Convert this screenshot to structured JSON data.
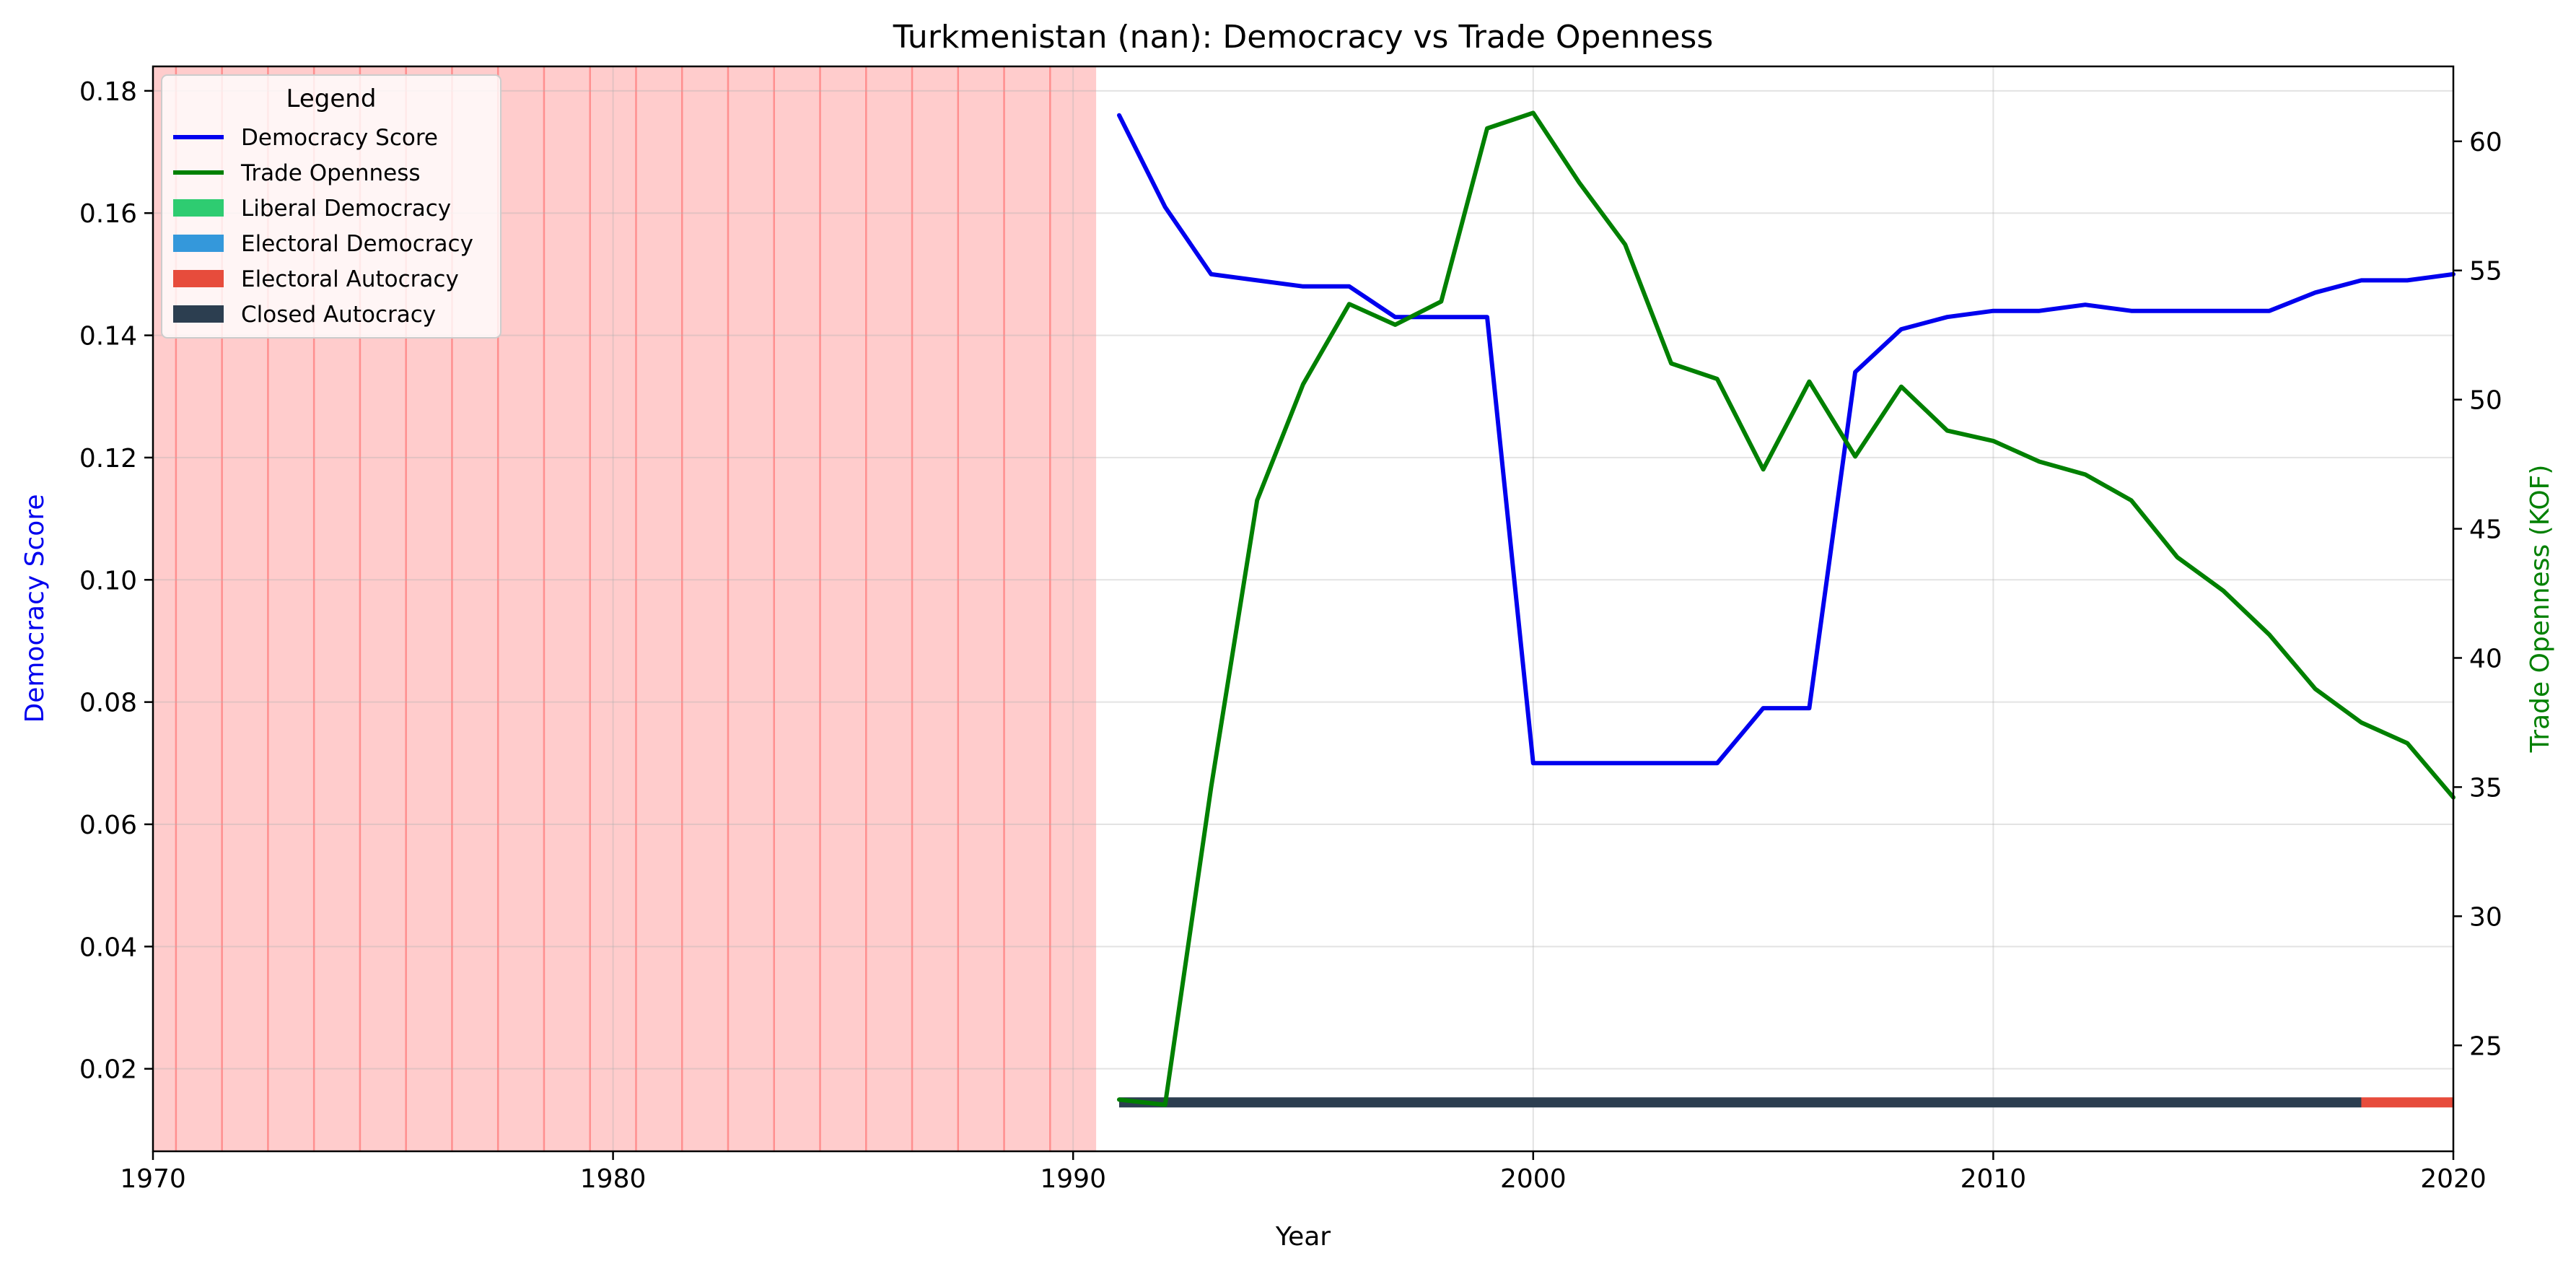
{
  "chart_data": {
    "type": "line",
    "title": "Turkmenistan (nan): Democracy vs Trade Openness",
    "xlabel": "Year",
    "ylabel_left": "Democracy Score",
    "ylabel_right": "Trade Openness (KOF)",
    "xlim": [
      1970,
      2020
    ],
    "ylim_left": [
      0.0065,
      0.184
    ],
    "ylim_right": [
      20.9,
      62.9
    ],
    "x_ticks": [
      1970,
      1980,
      1990,
      2000,
      2010,
      2020
    ],
    "y_left_ticks": [
      0.02,
      0.04,
      0.06,
      0.08,
      0.1,
      0.12,
      0.14,
      0.16,
      0.18
    ],
    "y_left_tick_labels": [
      "0.02",
      "0.04",
      "0.06",
      "0.08",
      "0.10",
      "0.12",
      "0.14",
      "0.16",
      "0.18"
    ],
    "y_right_ticks": [
      25,
      30,
      35,
      40,
      45,
      50,
      55,
      60
    ],
    "grid": true,
    "legend": {
      "title": "Legend",
      "placement": "top-left",
      "entries": [
        {
          "label": "Democracy Score",
          "kind": "line",
          "color": "#0000ee"
        },
        {
          "label": "Trade Openness",
          "kind": "line",
          "color": "#008000"
        },
        {
          "label": "Liberal Democracy",
          "kind": "patch",
          "color": "#2ecc71"
        },
        {
          "label": "Electoral Democracy",
          "kind": "patch",
          "color": "#3498db"
        },
        {
          "label": "Electoral Autocracy",
          "kind": "patch",
          "color": "#e74c3c"
        },
        {
          "label": "Closed Autocracy",
          "kind": "patch",
          "color": "#2c3e50"
        }
      ]
    },
    "missing_data_shading": {
      "range": [
        1970,
        1990.5
      ],
      "color": "#ff9999",
      "year_lines": [
        1970.5,
        1971.5,
        1972.5,
        1973.5,
        1974.5,
        1975.5,
        1976.5,
        1977.5,
        1978.5,
        1979.5,
        1980.5,
        1981.5,
        1982.5,
        1983.5,
        1984.5,
        1985.5,
        1986.5,
        1987.5,
        1988.5,
        1989.5
      ]
    },
    "series": [
      {
        "name": "Democracy Score",
        "axis": "left",
        "color": "#0000ee",
        "x": [
          1991,
          1992,
          1993,
          1994,
          1995,
          1996,
          1997,
          1998,
          1999,
          2000,
          2001,
          2002,
          2003,
          2004,
          2005,
          2006,
          2007,
          2008,
          2009,
          2010,
          2011,
          2012,
          2013,
          2014,
          2015,
          2016,
          2017,
          2018,
          2019,
          2020
        ],
        "values": [
          0.176,
          0.161,
          0.15,
          0.149,
          0.148,
          0.148,
          0.143,
          0.143,
          0.143,
          0.07,
          0.07,
          0.07,
          0.07,
          0.07,
          0.079,
          0.079,
          0.134,
          0.141,
          0.143,
          0.144,
          0.144,
          0.145,
          0.144,
          0.144,
          0.144,
          0.144,
          0.147,
          0.149,
          0.149,
          0.15
        ]
      },
      {
        "name": "Trade Openness",
        "axis": "right",
        "color": "#008000",
        "x": [
          1991,
          1992,
          1993,
          1994,
          1995,
          1996,
          1997,
          1998,
          1999,
          2000,
          2001,
          2002,
          2003,
          2004,
          2005,
          2006,
          2007,
          2008,
          2009,
          2010,
          2011,
          2012,
          2013,
          2014,
          2015,
          2016,
          2017,
          2018,
          2019,
          2020
        ],
        "values": [
          22.9,
          22.7,
          35.0,
          46.1,
          50.6,
          53.7,
          52.9,
          53.8,
          60.5,
          61.1,
          58.4,
          56.0,
          51.4,
          50.8,
          47.3,
          50.7,
          47.8,
          50.5,
          48.8,
          48.4,
          47.6,
          47.1,
          46.1,
          43.9,
          42.6,
          40.9,
          38.8,
          37.5,
          36.7,
          34.6
        ]
      }
    ],
    "regime_bar": {
      "y_value": 0.0145,
      "segments": [
        {
          "from": 1991,
          "to": 2018,
          "regime": "Closed Autocracy",
          "color": "#2c3e50"
        },
        {
          "from": 2018,
          "to": 2020,
          "regime": "Electoral Autocracy",
          "color": "#e74c3c"
        }
      ]
    }
  }
}
